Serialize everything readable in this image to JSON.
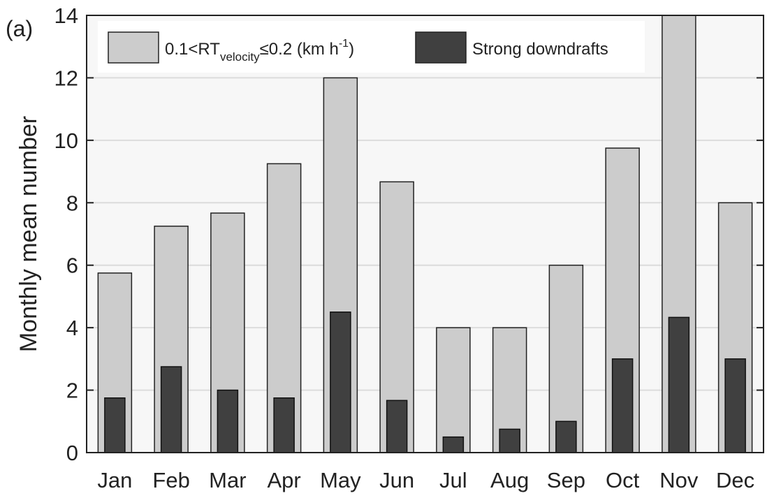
{
  "chart_data": {
    "type": "bar",
    "panel_label": "(a)",
    "ylabel": "Monthly mean number",
    "xlabel": "",
    "title": "",
    "ylim": [
      0,
      14
    ],
    "yticks": [
      0,
      2,
      4,
      6,
      8,
      10,
      12,
      14
    ],
    "grid": true,
    "legend_position": "top",
    "categories": [
      "Jan",
      "Feb",
      "Mar",
      "Apr",
      "May",
      "Jun",
      "Jul",
      "Aug",
      "Sep",
      "Oct",
      "Nov",
      "Dec"
    ],
    "series": [
      {
        "legend_parts": {
          "prefix": "0.1<RT",
          "subscript": "velocity",
          "suffix": "≤0.2 (km h",
          "superscript": "-1",
          "close": ")"
        },
        "color": "#cccccc",
        "values": [
          5.75,
          7.25,
          7.67,
          9.25,
          12.0,
          8.67,
          4.0,
          4.0,
          6.0,
          9.75,
          14.0,
          8.0
        ]
      },
      {
        "name": "Strong downdrafts",
        "color": "#404040",
        "values": [
          1.75,
          2.75,
          2.0,
          1.75,
          4.5,
          1.67,
          0.5,
          0.75,
          1.0,
          3.0,
          4.33,
          3.0
        ]
      }
    ]
  }
}
